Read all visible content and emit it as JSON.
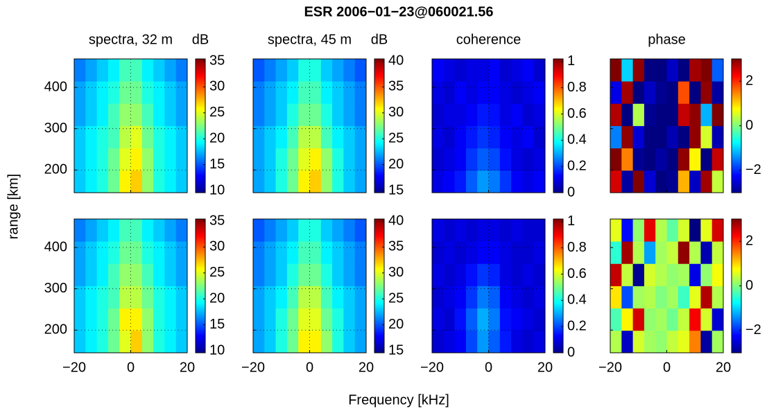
{
  "figure": {
    "title": "ESR 2006−01−23@060021.56",
    "xlabel": "Frequency [kHz]",
    "ylabel": "range [km]"
  },
  "chart_data": [
    {
      "type": "heatmap",
      "title": "spectra, 32 m",
      "clabel": "dB",
      "colormap": "jet",
      "grid": true,
      "x": [
        -18,
        -14,
        -10,
        -6,
        -2,
        2,
        6,
        10,
        14,
        18
      ],
      "y": [
        172,
        226,
        280,
        334,
        388,
        442
      ],
      "xlim": [
        -20,
        20
      ],
      "ylim": [
        145,
        469
      ],
      "xticks": [
        -20,
        0,
        20
      ],
      "yticks": [
        {
          "value": 200,
          "label": "200"
        },
        {
          "value": 300,
          "label": "300"
        },
        {
          "value": 400,
          "label": "400"
        }
      ],
      "clim": [
        9.6,
        35.4
      ],
      "cticks": [
        10,
        15,
        20,
        25,
        30,
        35
      ],
      "z": [
        [
          18,
          19,
          20,
          22,
          26,
          27,
          23,
          20,
          19,
          18
        ],
        [
          18,
          19,
          20,
          22,
          25,
          26,
          23,
          20,
          19,
          18
        ],
        [
          18,
          19,
          20,
          21,
          24,
          25,
          22,
          20,
          19,
          18
        ],
        [
          17,
          18,
          19,
          21,
          23,
          23,
          21,
          19,
          18,
          17
        ],
        [
          17,
          18,
          19,
          20,
          22,
          22,
          20,
          19,
          18,
          17
        ],
        [
          16,
          17,
          18,
          19,
          21,
          21,
          19,
          18,
          17,
          16
        ]
      ]
    },
    {
      "type": "heatmap",
      "title": "spectra, 45 m",
      "clabel": "dB",
      "colormap": "jet",
      "grid": true,
      "x": [
        -18,
        -14,
        -10,
        -6,
        -2,
        2,
        6,
        10,
        14,
        18
      ],
      "y": [
        172,
        226,
        280,
        334,
        388,
        442
      ],
      "xlim": [
        -20,
        20
      ],
      "ylim": [
        145,
        469
      ],
      "xticks": [
        -20,
        0,
        20
      ],
      "yticks": [
        200,
        300,
        400
      ],
      "clim": [
        14.6,
        40.4
      ],
      "cticks": [
        15,
        20,
        25,
        30,
        35,
        40
      ],
      "z": [
        [
          22,
          23,
          25,
          27,
          31,
          32,
          28,
          25,
          23,
          22
        ],
        [
          22,
          23,
          25,
          27,
          30,
          31,
          28,
          25,
          23,
          22
        ],
        [
          22,
          23,
          24,
          26,
          29,
          29,
          26,
          24,
          23,
          22
        ],
        [
          21,
          22,
          23,
          25,
          27,
          27,
          25,
          23,
          22,
          21
        ],
        [
          21,
          22,
          23,
          24,
          26,
          26,
          24,
          23,
          22,
          21
        ],
        [
          20,
          21,
          22,
          23,
          25,
          25,
          23,
          22,
          21,
          20
        ]
      ]
    },
    {
      "type": "heatmap",
      "title": "coherence",
      "colormap": "jet",
      "grid": true,
      "x": [
        -18,
        -14,
        -10,
        -6,
        -2,
        2,
        6,
        10,
        14,
        18
      ],
      "y": [
        172,
        226,
        280,
        334,
        388,
        442
      ],
      "xlim": [
        -20,
        20
      ],
      "ylim": [
        145,
        469
      ],
      "xticks": [
        -20,
        0,
        20
      ],
      "yticks": [
        200,
        300,
        400
      ],
      "clim": [
        0,
        1.02
      ],
      "cticks": [
        0,
        0.2,
        0.4,
        0.6,
        0.8,
        1
      ],
      "z": [
        [
          0.1,
          0.12,
          0.15,
          0.22,
          0.28,
          0.25,
          0.18,
          0.12,
          0.1,
          0.12
        ],
        [
          0.08,
          0.1,
          0.12,
          0.18,
          0.22,
          0.2,
          0.14,
          0.1,
          0.08,
          0.1
        ],
        [
          0.1,
          0.08,
          0.12,
          0.15,
          0.18,
          0.16,
          0.12,
          0.1,
          0.12,
          0.08
        ],
        [
          0.08,
          0.1,
          0.1,
          0.12,
          0.15,
          0.14,
          0.1,
          0.12,
          0.08,
          0.1
        ],
        [
          0.1,
          0.08,
          0.12,
          0.1,
          0.12,
          0.12,
          0.1,
          0.08,
          0.1,
          0.12
        ],
        [
          0.12,
          0.1,
          0.08,
          0.1,
          0.1,
          0.12,
          0.08,
          0.1,
          0.12,
          0.08
        ]
      ]
    },
    {
      "type": "heatmap",
      "title": "phase",
      "colormap": "jet",
      "grid": false,
      "x": [
        -18,
        -14,
        -10,
        -6,
        -2,
        2,
        6,
        10,
        14,
        18
      ],
      "y": [
        172,
        226,
        280,
        334,
        388,
        442
      ],
      "xlim": [
        -20,
        20
      ],
      "ylim": [
        145,
        469
      ],
      "xticks": [
        -20,
        0,
        20
      ],
      "yticks": [
        200,
        300,
        400
      ],
      "clim": [
        -3,
        3
      ],
      "cticks": [
        {
          "value": -2,
          "label": "−2"
        },
        0,
        2
      ],
      "z": [
        [
          2.5,
          -2.8,
          3,
          -2.5,
          -3,
          -2.9,
          1.2,
          -2.6,
          2.8,
          0.4
        ],
        [
          3,
          1.5,
          -2.9,
          -3,
          -2.8,
          -3,
          2.9,
          0.8,
          -3,
          2.6
        ],
        [
          -1.5,
          2.9,
          -2.5,
          -3,
          -3,
          -2.7,
          -3,
          2.9,
          0.5,
          -2.7
        ],
        [
          2.7,
          -3,
          0.3,
          -2.9,
          -3,
          -3,
          2.6,
          2.9,
          -1.2,
          3
        ],
        [
          -2.4,
          2.8,
          -3,
          -2.6,
          -2.9,
          -3,
          1.8,
          -3,
          2.9,
          -2.8
        ],
        [
          3,
          -1,
          2.9,
          -3,
          -3,
          -2.6,
          -3,
          2.8,
          3,
          -1.7
        ]
      ]
    },
    {
      "type": "heatmap",
      "colormap": "jet",
      "grid": true,
      "x": [
        -18,
        -14,
        -10,
        -6,
        -2,
        2,
        6,
        10,
        14,
        18
      ],
      "y": [
        172,
        226,
        280,
        334,
        388,
        442
      ],
      "xlim": [
        -20,
        20
      ],
      "ylim": [
        145,
        469
      ],
      "xticks": [
        {
          "value": -20,
          "label": "−20"
        },
        {
          "value": 0,
          "label": "0"
        },
        {
          "value": 20,
          "label": "20"
        }
      ],
      "yticks": [
        {
          "value": 200,
          "label": "200"
        },
        {
          "value": 300,
          "label": "300"
        },
        {
          "value": 400,
          "label": "400"
        }
      ],
      "clim": [
        9.6,
        35.4
      ],
      "cticks": [
        10,
        15,
        20,
        25,
        30,
        35
      ],
      "z": [
        [
          18,
          19,
          20,
          22,
          25,
          27,
          23,
          20,
          19,
          18
        ],
        [
          18,
          19,
          20,
          22,
          26,
          26,
          23,
          20,
          19,
          18
        ],
        [
          18,
          19,
          20,
          21,
          24,
          24,
          22,
          20,
          19,
          18
        ],
        [
          17,
          18,
          19,
          21,
          23,
          23,
          21,
          19,
          18,
          17
        ],
        [
          17,
          18,
          19,
          20,
          22,
          22,
          20,
          19,
          18,
          17
        ],
        [
          16,
          17,
          18,
          19,
          21,
          21,
          19,
          18,
          17,
          16
        ]
      ]
    },
    {
      "type": "heatmap",
      "colormap": "jet",
      "grid": true,
      "x": [
        -18,
        -14,
        -10,
        -6,
        -2,
        2,
        6,
        10,
        14,
        18
      ],
      "y": [
        172,
        226,
        280,
        334,
        388,
        442
      ],
      "xlim": [
        -20,
        20
      ],
      "ylim": [
        145,
        469
      ],
      "xticks": [
        {
          "value": -20,
          "label": "−20"
        },
        {
          "value": 0,
          "label": "0"
        },
        {
          "value": 20,
          "label": "20"
        }
      ],
      "yticks": [
        200,
        300,
        400
      ],
      "clim": [
        14.6,
        40.4
      ],
      "cticks": [
        15,
        20,
        25,
        30,
        35,
        40
      ],
      "z": [
        [
          22,
          23,
          25,
          27,
          31,
          31,
          28,
          25,
          23,
          22
        ],
        [
          22,
          23,
          25,
          27,
          30,
          30,
          27,
          25,
          23,
          22
        ],
        [
          22,
          23,
          24,
          26,
          29,
          29,
          26,
          24,
          23,
          22
        ],
        [
          21,
          22,
          23,
          25,
          27,
          27,
          25,
          23,
          22,
          21
        ],
        [
          21,
          22,
          23,
          24,
          26,
          26,
          24,
          23,
          22,
          21
        ],
        [
          20,
          21,
          22,
          23,
          25,
          25,
          23,
          22,
          21,
          20
        ]
      ]
    },
    {
      "type": "heatmap",
      "colormap": "jet",
      "grid": true,
      "x": [
        -18,
        -14,
        -10,
        -6,
        -2,
        2,
        6,
        10,
        14,
        18
      ],
      "y": [
        172,
        226,
        280,
        334,
        388,
        442
      ],
      "xlim": [
        -20,
        20
      ],
      "ylim": [
        145,
        469
      ],
      "xticks": [
        {
          "value": -20,
          "label": "−20"
        },
        {
          "value": 0,
          "label": "0"
        },
        {
          "value": 20,
          "label": "20"
        }
      ],
      "yticks": [
        200,
        300,
        400
      ],
      "clim": [
        0,
        1.02
      ],
      "cticks": [
        0,
        0.2,
        0.4,
        0.6,
        0.8,
        1
      ],
      "z": [
        [
          0.08,
          0.1,
          0.12,
          0.2,
          0.28,
          0.22,
          0.15,
          0.1,
          0.08,
          0.1
        ],
        [
          0.1,
          0.08,
          0.14,
          0.22,
          0.3,
          0.25,
          0.14,
          0.12,
          0.1,
          0.08
        ],
        [
          0.08,
          0.1,
          0.12,
          0.18,
          0.25,
          0.22,
          0.12,
          0.1,
          0.08,
          0.1
        ],
        [
          0.1,
          0.08,
          0.1,
          0.14,
          0.18,
          0.16,
          0.1,
          0.08,
          0.1,
          0.08
        ],
        [
          0.08,
          0.1,
          0.08,
          0.1,
          0.12,
          0.12,
          0.1,
          0.08,
          0.08,
          0.1
        ],
        [
          0.1,
          0.08,
          0.1,
          0.08,
          0.1,
          0.1,
          0.08,
          0.1,
          0.08,
          0.08
        ]
      ]
    },
    {
      "type": "heatmap",
      "colormap": "jet",
      "grid": false,
      "x": [
        -18,
        -14,
        -10,
        -6,
        -2,
        2,
        6,
        10,
        14,
        18
      ],
      "y": [
        172,
        226,
        280,
        334,
        388,
        442
      ],
      "xlim": [
        -20,
        20
      ],
      "ylim": [
        145,
        469
      ],
      "xticks": [
        {
          "value": -20,
          "label": "−20"
        },
        {
          "value": 0,
          "label": "0"
        },
        {
          "value": 20,
          "label": "20"
        }
      ],
      "yticks": [
        200,
        300,
        400
      ],
      "clim": [
        -3,
        3
      ],
      "cticks": [
        {
          "value": -2,
          "label": "−2"
        },
        0,
        2
      ],
      "z": [
        [
          0.3,
          -2.6,
          0.5,
          0.2,
          0.1,
          0.4,
          0.6,
          1.5,
          -2.8,
          0.2
        ],
        [
          -0.3,
          0.8,
          2.5,
          0.1,
          0.2,
          -0.1,
          0.4,
          2.3,
          0.5,
          -2.5
        ],
        [
          0.9,
          -1.8,
          0.2,
          0.3,
          0,
          0.2,
          -0.4,
          0.6,
          2.7,
          0.3
        ],
        [
          2.6,
          0.4,
          -2.9,
          0.5,
          0.3,
          0.1,
          0.2,
          -2.4,
          0.1,
          0.7
        ],
        [
          -0.5,
          2.8,
          0.3,
          -1.3,
          0.2,
          0.4,
          2.9,
          0.3,
          -2.7,
          0.4
        ],
        [
          0.6,
          -2.2,
          0.1,
          2.4,
          0.3,
          -0.2,
          0.5,
          -3,
          0.6,
          2.5
        ]
      ]
    }
  ]
}
